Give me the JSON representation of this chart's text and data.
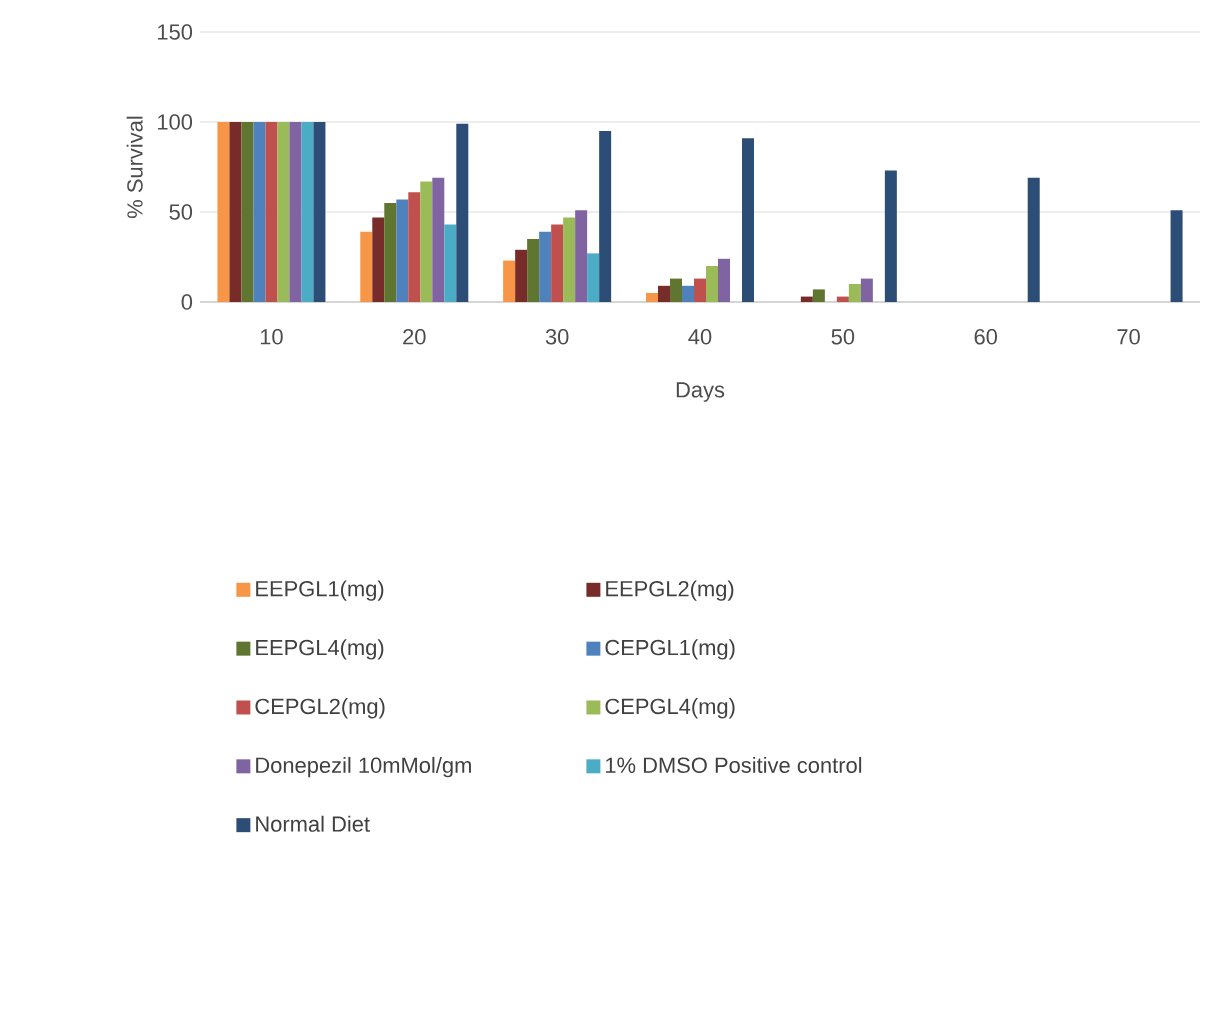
{
  "chart_data": {
    "type": "bar",
    "xlabel": "Days",
    "ylabel": "% Survival",
    "categories": [
      "10",
      "20",
      "30",
      "40",
      "50",
      "60",
      "70"
    ],
    "ylim": [
      0,
      150
    ],
    "yticks": [
      0,
      50,
      100,
      150
    ],
    "grid": "y",
    "legend": "bottom",
    "series": [
      {
        "name": "EEPGL1(mg)",
        "color": "#f79646",
        "values": [
          100,
          39,
          23,
          5,
          0,
          0,
          0
        ]
      },
      {
        "name": "EEPGL2(mg)",
        "color": "#772c2a",
        "values": [
          100,
          47,
          29,
          9,
          3,
          0,
          0
        ]
      },
      {
        "name": "EEPGL4(mg)",
        "color": "#5f7530",
        "values": [
          100,
          55,
          35,
          13,
          7,
          0,
          0
        ]
      },
      {
        "name": "CEPGL1(mg)",
        "color": "#4f81bd",
        "values": [
          100,
          57,
          39,
          9,
          0,
          0,
          0
        ]
      },
      {
        "name": "CEPGL2(mg)",
        "color": "#c0504d",
        "values": [
          100,
          61,
          43,
          13,
          3,
          0,
          0
        ]
      },
      {
        "name": "CEPGL4(mg)",
        "color": "#9bbb59",
        "values": [
          100,
          67,
          47,
          20,
          10,
          0,
          0
        ]
      },
      {
        "name": "Donepezil 10mMol/gm",
        "color": "#8064a2",
        "values": [
          100,
          69,
          51,
          24,
          13,
          0,
          0
        ]
      },
      {
        "name": "1% DMSO Positive control",
        "color": "#4bacc6",
        "values": [
          100,
          43,
          27,
          0,
          0,
          0,
          0
        ]
      },
      {
        "name": "Normal Diet",
        "color": "#2c4d75",
        "values": [
          100,
          99,
          95,
          91,
          73,
          69,
          51
        ]
      }
    ]
  }
}
